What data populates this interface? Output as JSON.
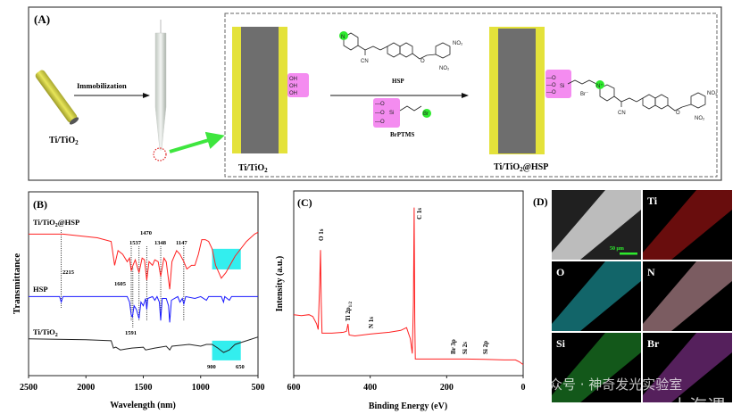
{
  "panel_a": {
    "label": "(A)",
    "step1_label": "Immobilization",
    "substrate_label": {
      "main": "Ti/TiO",
      "sub": "2"
    },
    "intermediate_label": {
      "main": "Ti/TiO",
      "sub": "2"
    },
    "product_label": {
      "main": "Ti/TiO",
      "sub": "2",
      "tail": "@HSP"
    },
    "reagent1_label": "HSP",
    "reagent2_label": "BrPTMS",
    "hydroxyl": [
      "OH",
      "OH",
      "OH"
    ],
    "atoms": {
      "N": "N",
      "CN": "CN",
      "NO2": "NO₂",
      "O": "O",
      "Si": "Si",
      "Br": "Br",
      "N_plus": "N⁺",
      "Br_minus": "Br⁻"
    },
    "colors": {
      "coating": "#e4e23a",
      "core": "#6e6e6e",
      "highlight_box": "#f48cf0",
      "reactive_atom": "#2eea2e",
      "pointer_arrow": "#3ee63e",
      "tip_circle": "#e02020"
    }
  },
  "chart_data": [
    {
      "panel_label": "(B)",
      "type": "line",
      "xlabel": "Wavelength (nm)",
      "ylabel": "Transmittance",
      "xlim": [
        2500,
        500
      ],
      "ylim": [
        0,
        100
      ],
      "x_reversed": true,
      "x_ticks": [
        "2500",
        "2000",
        "1500",
        "1000",
        "500"
      ],
      "x_tick_values": [
        2500,
        2000,
        1500,
        1000,
        500
      ],
      "grid": false,
      "series": [
        {
          "name": "Ti/TiO₂@HSP",
          "color": "#ff2020",
          "x": [
            2500,
            2200,
            1900,
            1780,
            1750,
            1720,
            1680,
            1640,
            1620,
            1605,
            1590,
            1570,
            1537,
            1510,
            1490,
            1470,
            1450,
            1420,
            1400,
            1370,
            1348,
            1320,
            1300,
            1270,
            1250,
            1210,
            1180,
            1147,
            1120,
            1080,
            1050,
            1020,
            990,
            960,
            930,
            900,
            870,
            820,
            780,
            700,
            600,
            530,
            500
          ],
          "y": [
            77,
            77,
            75,
            73,
            60,
            68,
            66,
            62,
            64,
            57,
            60,
            63,
            56,
            64,
            63,
            52,
            62,
            60,
            63,
            62,
            54,
            64,
            62,
            47,
            62,
            68,
            66,
            62,
            58,
            60,
            60,
            66,
            74,
            74,
            73,
            69,
            60,
            53,
            56,
            65,
            73,
            77,
            78
          ]
        },
        {
          "name": "HSP",
          "color": "#1a1aff",
          "x": [
            2500,
            2230,
            2215,
            2200,
            1640,
            1620,
            1605,
            1595,
            1580,
            1560,
            1537,
            1520,
            1500,
            1480,
            1470,
            1460,
            1420,
            1400,
            1380,
            1360,
            1348,
            1335,
            1300,
            1280,
            1270,
            1255,
            1200,
            1180,
            1160,
            1147,
            1130,
            1050,
            1000,
            950,
            930,
            820,
            800,
            790,
            750,
            730,
            500
          ],
          "y": [
            43,
            43,
            40,
            43,
            43,
            40,
            33,
            32,
            38,
            36,
            31,
            40,
            38,
            42,
            36,
            42,
            43,
            41,
            43,
            40,
            30,
            42,
            42,
            38,
            29,
            41,
            43,
            40,
            42,
            39,
            43,
            42,
            43,
            41,
            43,
            43,
            40,
            43,
            41,
            43,
            43
          ]
        },
        {
          "name": "Ti/TiO₂",
          "color": "#222222",
          "x": [
            2500,
            2000,
            1780,
            1760,
            1740,
            1700,
            1650,
            1600,
            1500,
            1480,
            1400,
            1300,
            1270,
            1250,
            1100,
            1000,
            950,
            900,
            850,
            800,
            750,
            700,
            600,
            500
          ],
          "y": [
            20,
            19.5,
            19,
            15,
            15.5,
            14,
            14.5,
            15,
            15.5,
            14,
            15,
            16,
            14,
            16,
            17,
            16,
            17,
            17,
            15,
            12.6,
            14,
            17,
            19,
            21
          ]
        }
      ],
      "highlight_regions": [
        {
          "series": "Ti/TiO₂@HSP",
          "x": [
            900,
            650
          ],
          "y": [
            57.8,
            69
          ],
          "color": "#33eeee"
        },
        {
          "series": "Ti/TiO₂",
          "x": [
            900,
            650
          ],
          "y": [
            8.3,
            19
          ],
          "color": "#33eeee"
        }
      ],
      "annotations": {
        "peaks": [
          "2215",
          "1605",
          "1591",
          "1537",
          "1470",
          "1348",
          "1147"
        ],
        "peak_values": [
          2215,
          1605,
          1591,
          1537,
          1470,
          1348,
          1147
        ],
        "region_labels": [
          "900",
          "650"
        ]
      },
      "series_labels": [
        {
          "main": "Ti/TiO",
          "sub": "2",
          "tail": "@HSP"
        },
        {
          "main": "HSP",
          "sub": "",
          "tail": ""
        },
        {
          "main": "Ti/TiO",
          "sub": "2",
          "tail": ""
        }
      ]
    },
    {
      "panel_label": "(C)",
      "type": "line",
      "xlabel": "Binding Energy (eV)",
      "ylabel": "Intensity (a.u.)",
      "xlim": [
        600,
        0
      ],
      "ylim": [
        0,
        100
      ],
      "x_reversed": true,
      "x_ticks": [
        "600",
        "400",
        "200",
        "0"
      ],
      "x_tick_values": [
        600,
        400,
        200,
        0
      ],
      "grid": false,
      "series": [
        {
          "color": "#ff2020",
          "x": [
            600,
            580,
            560,
            550,
            540,
            536,
            532,
            530,
            528,
            526,
            500,
            470,
            462,
            458,
            455,
            440,
            400,
            350,
            320,
            305,
            295,
            290,
            287,
            285,
            283.5,
            282,
            250,
            200,
            150,
            100,
            50,
            20,
            10,
            0
          ],
          "y": [
            33,
            32.5,
            33,
            32,
            28,
            25,
            50,
            68,
            40,
            23,
            23,
            23.5,
            24,
            28,
            22,
            21.5,
            22.5,
            23.5,
            24.5,
            26,
            20,
            12,
            40,
            91,
            30,
            9,
            9,
            9,
            9,
            8.8,
            8.5,
            8.5,
            7.5,
            6
          ]
        }
      ],
      "annotations": [
        "O 1s",
        "C 1s",
        "N 1s",
        "Br 3p",
        "Si 2s",
        "Si 2p"
      ],
      "annotation_ti": {
        "main": "Ti 2p",
        "sub": "1/2"
      }
    }
  ],
  "panel_d": {
    "label": "(D)",
    "scale_bar": "50 μm",
    "maps": [
      {
        "label": "",
        "color": "#d8d8d8"
      },
      {
        "label": "Ti",
        "color": "#c01818"
      },
      {
        "label": "O",
        "color": "#20b8c0"
      },
      {
        "label": "N",
        "color": "#e0a8b0"
      },
      {
        "label": "Si",
        "color": "#22a030"
      },
      {
        "label": "Br",
        "color": "#9a3aa8"
      }
    ]
  },
  "watermark": {
    "line1": "公众号 · 神奇发光实验室",
    "line2": "上海谓"
  }
}
